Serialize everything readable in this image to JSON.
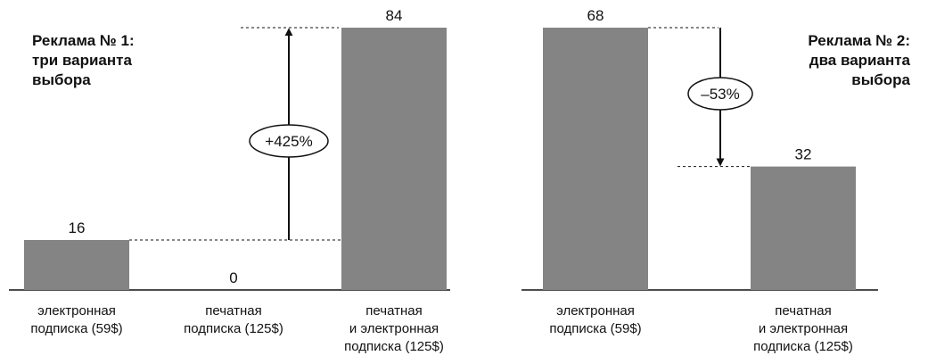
{
  "chart_data": [
    {
      "type": "bar",
      "title": "Реклама № 1: три варианта выбора",
      "title_lines": [
        "Реклама № 1:",
        "три варианта",
        "выбора"
      ],
      "categories": [
        [
          "электронная",
          "подписка (59$)"
        ],
        [
          "печатная",
          "подписка (125$)"
        ],
        [
          "печатная",
          "и электронная",
          "подписка (125$)"
        ]
      ],
      "values": [
        16,
        0,
        84
      ],
      "ylim": [
        0,
        84
      ],
      "bar_color": "#848484",
      "annotation": {
        "text": "+425%",
        "from_category": 0,
        "to_category": 2,
        "direction": "up"
      }
    },
    {
      "type": "bar",
      "title": "Реклама № 2: два варианта выбора",
      "title_lines": [
        "Реклама № 2:",
        "два варианта",
        "выбора"
      ],
      "categories": [
        [
          "электронная",
          "подписка (59$)"
        ],
        [
          "печатная",
          "и электронная",
          "подписка (125$)"
        ]
      ],
      "values": [
        68,
        32
      ],
      "ylim": [
        0,
        68
      ],
      "bar_color": "#848484",
      "annotation": {
        "text": "–53%",
        "from_category": 0,
        "to_category": 1,
        "direction": "down"
      }
    }
  ]
}
